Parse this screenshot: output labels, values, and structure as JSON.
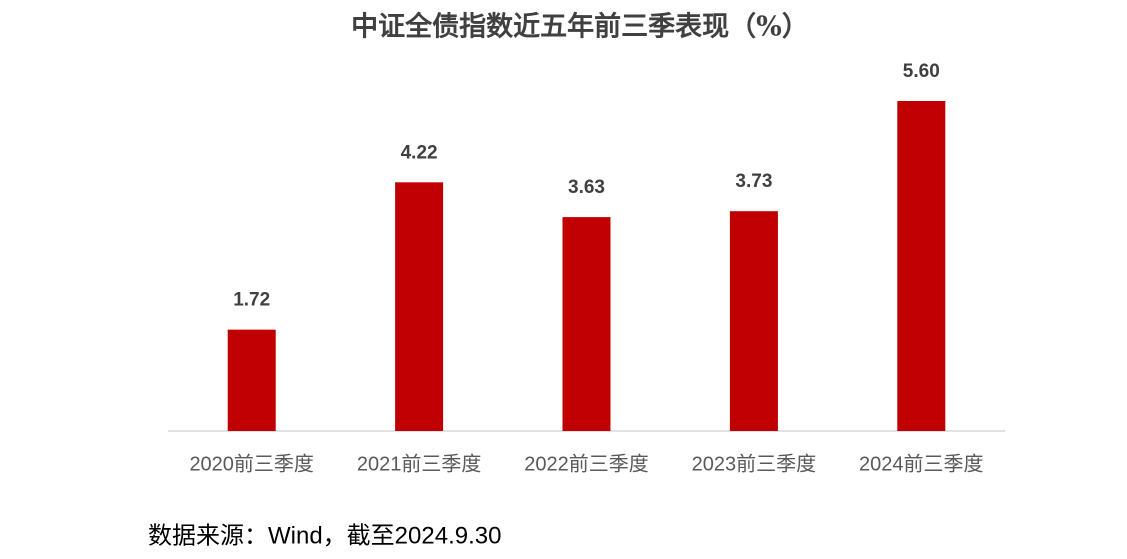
{
  "chart_data": {
    "type": "bar",
    "title": "中证全债指数近五年前三季表现（%）",
    "categories": [
      "2020前三季度",
      "2021前三季度",
      "2022前三季度",
      "2023前三季度",
      "2024前三季度"
    ],
    "values": [
      1.72,
      4.22,
      3.63,
      3.73,
      5.6
    ],
    "value_labels": [
      "1.72",
      "4.22",
      "3.63",
      "3.73",
      "5.60"
    ],
    "color": "#c00000",
    "source": "数据来源：Wind，截至2024.9.30"
  }
}
